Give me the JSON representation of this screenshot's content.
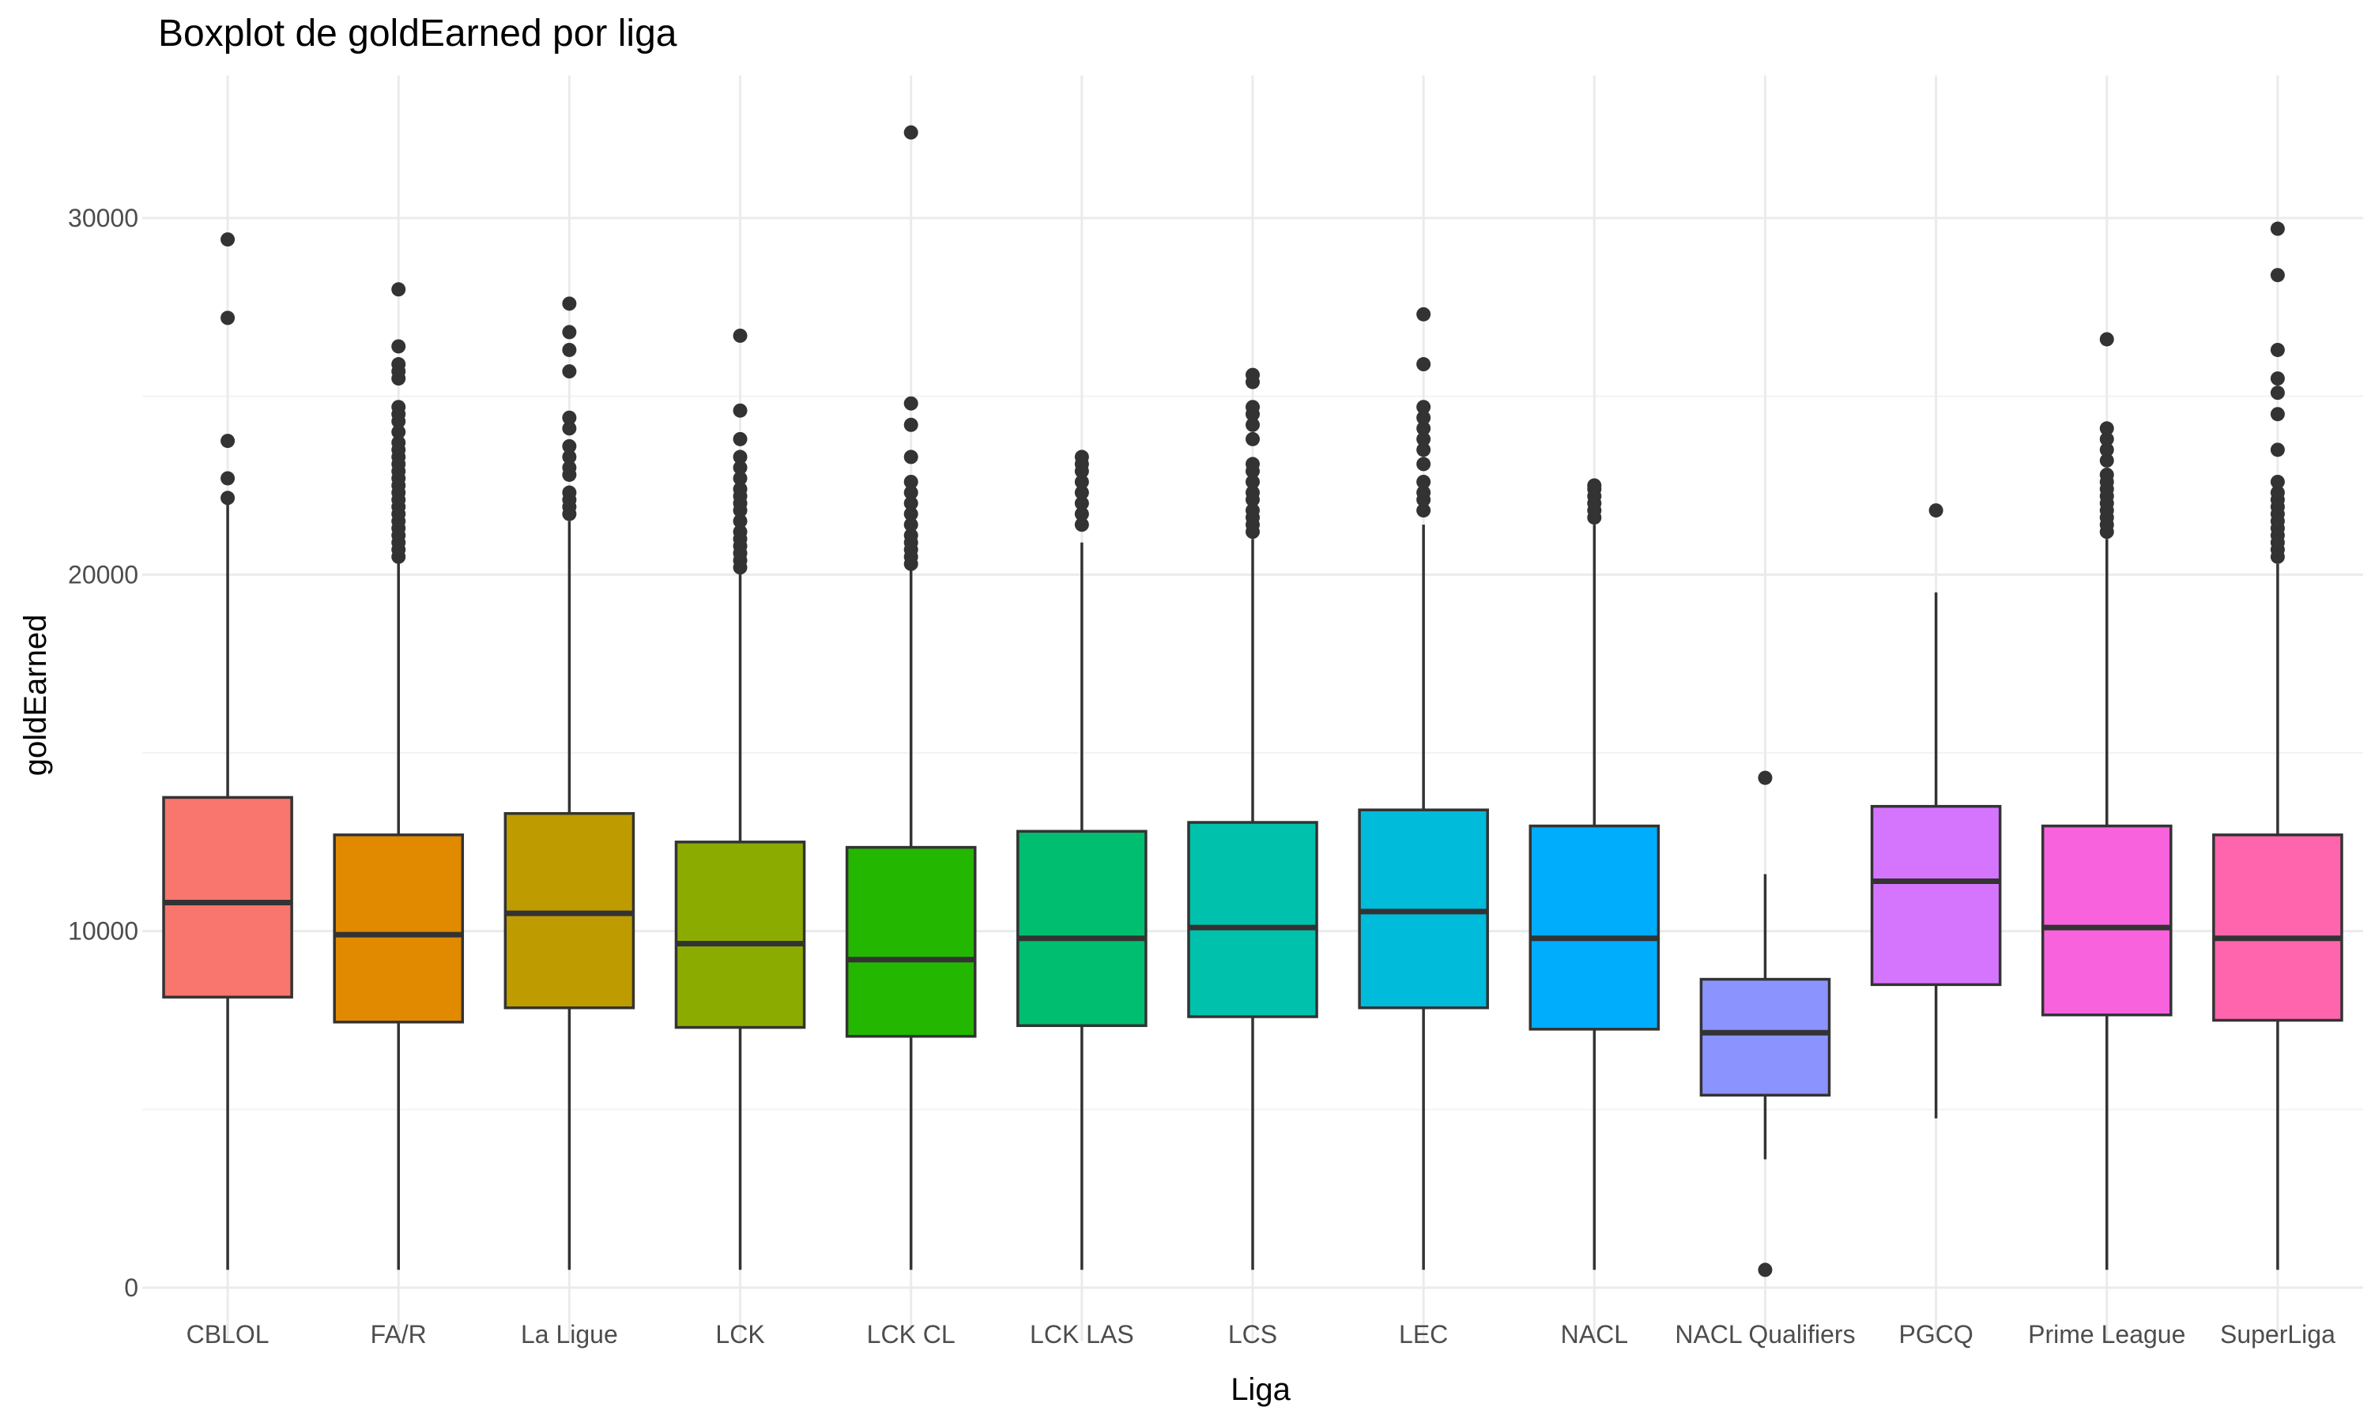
{
  "chart_data": {
    "type": "boxplot",
    "title": "Boxplot de goldEarned por liga",
    "xlabel": "Liga",
    "ylabel": "goldEarned",
    "ylim": [
      -1500,
      34000
    ],
    "y_ticks": [
      0,
      10000,
      20000,
      30000
    ],
    "y_minor_ticks": [
      5000,
      15000,
      25000
    ],
    "grid": true,
    "legend": "none",
    "categories": [
      "CBLOL",
      "FA/R",
      "La Ligue",
      "LCK",
      "LCK CL",
      "LCK LAS",
      "LCS",
      "LEC",
      "NACL",
      "NACL Qualifiers",
      "PGCQ",
      "Prime League",
      "SuperLiga"
    ],
    "boxes": [
      {
        "category": "CBLOL",
        "color": "#F8766D",
        "lower_whisker": 500,
        "q1": 8150,
        "median": 10800,
        "q3": 13750,
        "upper_whisker": 22000,
        "outliers": [
          22150,
          22700,
          23750,
          27200,
          29400
        ]
      },
      {
        "category": "FA/R",
        "color": "#E18A00",
        "lower_whisker": 500,
        "q1": 7450,
        "median": 9900,
        "q3": 12700,
        "upper_whisker": 20400,
        "outliers": [
          20500,
          20700,
          20900,
          21100,
          21300,
          21500,
          21700,
          21900,
          22100,
          22300,
          22500,
          22700,
          22900,
          23100,
          23300,
          23500,
          23700,
          24000,
          24300,
          24500,
          24700,
          25500,
          25700,
          25900,
          26400,
          28000
        ]
      },
      {
        "category": "La Ligue",
        "color": "#BE9C00",
        "lower_whisker": 500,
        "q1": 7850,
        "median": 10500,
        "q3": 13300,
        "upper_whisker": 21500,
        "outliers": [
          21700,
          21900,
          22100,
          22300,
          22800,
          23000,
          23300,
          23600,
          24100,
          24400,
          25700,
          26300,
          26800,
          27600
        ]
      },
      {
        "category": "LCK",
        "color": "#8CAB00",
        "lower_whisker": 500,
        "q1": 7300,
        "median": 9650,
        "q3": 12500,
        "upper_whisker": 20100,
        "outliers": [
          20200,
          20400,
          20600,
          20800,
          21000,
          21200,
          21500,
          21800,
          22000,
          22200,
          22400,
          22700,
          23000,
          23300,
          23800,
          24600,
          26700
        ]
      },
      {
        "category": "LCK CL",
        "color": "#24B700",
        "lower_whisker": 500,
        "q1": 7050,
        "median": 9200,
        "q3": 12350,
        "upper_whisker": 20200,
        "outliers": [
          20300,
          20500,
          20700,
          20900,
          21100,
          21400,
          21700,
          22000,
          22300,
          22600,
          23300,
          24200,
          24800,
          32400
        ]
      },
      {
        "category": "LCK LAS",
        "color": "#00BE70",
        "lower_whisker": 500,
        "q1": 7350,
        "median": 9800,
        "q3": 12800,
        "upper_whisker": 20900,
        "outliers": [
          21400,
          21700,
          22000,
          22300,
          22600,
          22900,
          23100,
          23300
        ]
      },
      {
        "category": "LCS",
        "color": "#00C1AB",
        "lower_whisker": 500,
        "q1": 7600,
        "median": 10100,
        "q3": 13050,
        "upper_whisker": 21000,
        "outliers": [
          21200,
          21400,
          21600,
          21800,
          22100,
          22300,
          22600,
          22900,
          23100,
          23800,
          24200,
          24500,
          24700,
          25400,
          25600
        ]
      },
      {
        "category": "LEC",
        "color": "#00BBDA",
        "lower_whisker": 500,
        "q1": 7850,
        "median": 10550,
        "q3": 13400,
        "upper_whisker": 21400,
        "outliers": [
          21800,
          22100,
          22300,
          22600,
          23100,
          23500,
          23800,
          24100,
          24400,
          24700,
          25900,
          27300
        ]
      },
      {
        "category": "NACL",
        "color": "#00ACFC",
        "lower_whisker": 500,
        "q1": 7250,
        "median": 9800,
        "q3": 12950,
        "upper_whisker": 21400,
        "outliers": [
          21600,
          21800,
          22000,
          22200,
          22400,
          22500
        ]
      },
      {
        "category": "NACL Qualifiers",
        "color": "#8B93FF",
        "lower_whisker": 3600,
        "q1": 5400,
        "median": 7150,
        "q3": 8650,
        "upper_whisker": 11600,
        "outliers": [
          500,
          14300
        ]
      },
      {
        "category": "PGCQ",
        "color": "#D575FE",
        "lower_whisker": 4750,
        "q1": 8500,
        "median": 11400,
        "q3": 13500,
        "upper_whisker": 19500,
        "outliers": [
          21800
        ]
      },
      {
        "category": "Prime League",
        "color": "#F962DD",
        "lower_whisker": 500,
        "q1": 7650,
        "median": 10100,
        "q3": 12950,
        "upper_whisker": 21000,
        "outliers": [
          21200,
          21400,
          21600,
          21800,
          22000,
          22200,
          22400,
          22600,
          22800,
          23200,
          23500,
          23800,
          24100,
          26600
        ]
      },
      {
        "category": "SuperLiga",
        "color": "#FF65AC",
        "lower_whisker": 500,
        "q1": 7500,
        "median": 9800,
        "q3": 12700,
        "upper_whisker": 20300,
        "outliers": [
          20500,
          20700,
          20900,
          21100,
          21300,
          21500,
          21700,
          21900,
          22100,
          22300,
          22600,
          23500,
          24500,
          25100,
          25500,
          26300,
          28400,
          29700
        ]
      }
    ]
  }
}
